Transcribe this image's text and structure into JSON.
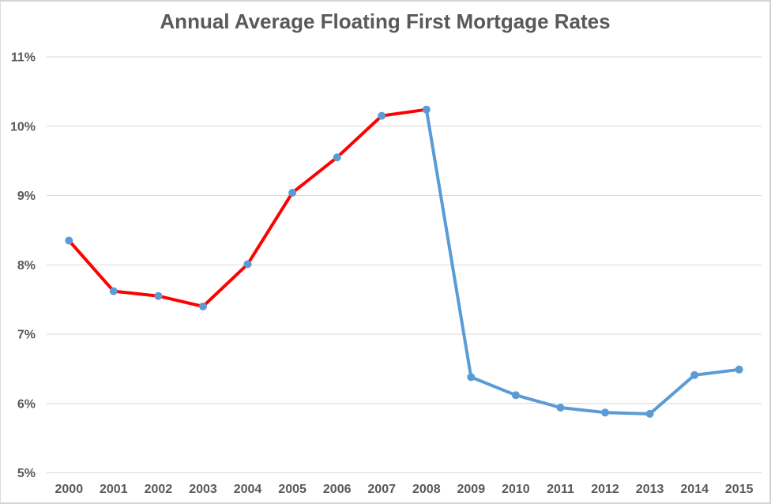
{
  "frame": {
    "background": "#ffffff",
    "border_color": "#d4d4d4"
  },
  "chart_data": {
    "type": "line",
    "title": "Annual Average Floating First Mortgage Rates",
    "categories": [
      "2000",
      "2001",
      "2002",
      "2003",
      "2004",
      "2005",
      "2006",
      "2007",
      "2008",
      "2009",
      "2010",
      "2011",
      "2012",
      "2013",
      "2014",
      "2015"
    ],
    "values": [
      8.35,
      7.62,
      7.55,
      7.4,
      8.01,
      9.04,
      9.55,
      10.15,
      10.24,
      6.38,
      6.12,
      5.94,
      5.87,
      5.85,
      6.41,
      6.49
    ],
    "segments": [
      {
        "name": "2000-to-2008",
        "from": 0,
        "to": 8,
        "color": "#ff0000"
      },
      {
        "name": "2008-to-2015",
        "from": 8,
        "to": 15,
        "color": "#5b9bd5"
      }
    ],
    "marker_color": "#5b9bd5",
    "y_ticks": [
      {
        "label": "11%",
        "value": 11
      },
      {
        "label": "10%",
        "value": 10
      },
      {
        "label": "9%",
        "value": 9
      },
      {
        "label": "8%",
        "value": 8
      },
      {
        "label": "7%",
        "value": 7
      },
      {
        "label": "6%",
        "value": 6
      },
      {
        "label": "5%",
        "value": 5
      }
    ],
    "ylim": [
      5,
      11
    ],
    "xlabel": "",
    "ylabel": "",
    "grid": true,
    "grid_color": "#d9d9d9",
    "text_color": "#595959",
    "legend": "none"
  }
}
